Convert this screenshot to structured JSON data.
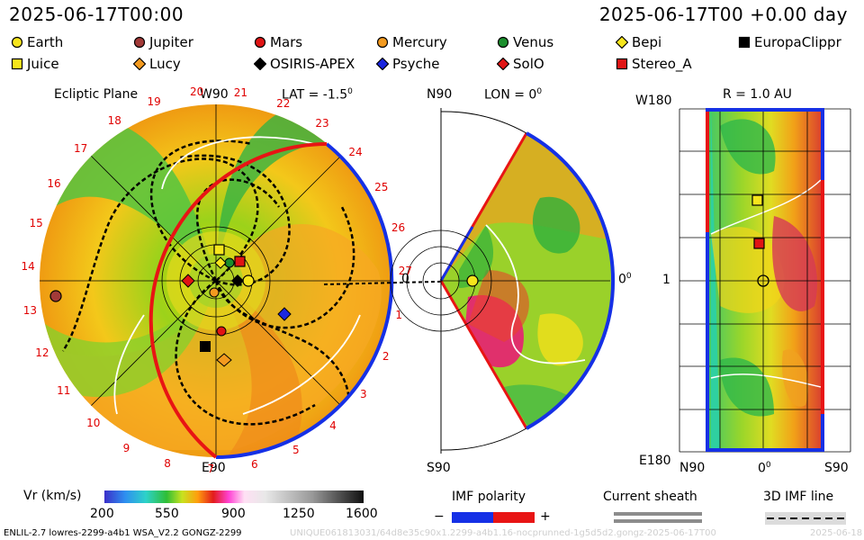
{
  "header": {
    "datetime": "2025-06-17T00:00",
    "offset": "2025-06-17T00 +0.00 day"
  },
  "legend": [
    {
      "name": "Earth",
      "shape": "circle",
      "color": "#f6e51c"
    },
    {
      "name": "Jupiter",
      "shape": "circle",
      "color": "#a23a38"
    },
    {
      "name": "Mars",
      "shape": "circle",
      "color": "#e01414"
    },
    {
      "name": "Mercury",
      "shape": "circle",
      "color": "#f39a1f"
    },
    {
      "name": "Venus",
      "shape": "circle",
      "color": "#1a8e2c"
    },
    {
      "name": "Bepi",
      "shape": "diamond",
      "color": "#f6e51c"
    },
    {
      "name": "EuropaClippr",
      "shape": "square",
      "color": "#000000"
    },
    {
      "name": "Juice",
      "shape": "square",
      "color": "#f6e51c"
    },
    {
      "name": "Lucy",
      "shape": "diamond",
      "color": "#f39a1f"
    },
    {
      "name": "OSIRIS-APEX",
      "shape": "diamond",
      "color": "#000000"
    },
    {
      "name": "Psyche",
      "shape": "diamond",
      "color": "#1b27e0"
    },
    {
      "name": "SolO",
      "shape": "diamond",
      "color": "#e01414"
    },
    {
      "name": "Stereo_A",
      "shape": "square",
      "color": "#e01414"
    }
  ],
  "ecliptic": {
    "title": "Ecliptic Plane",
    "top_label": "W90",
    "lat_label": "LAT = -1.5",
    "lat_sup": "0",
    "bottom_label": "E90",
    "ticks": [
      "20",
      "21",
      "22",
      "23",
      "24",
      "25",
      "26",
      "27",
      "1",
      "2",
      "3",
      "4",
      "5",
      "6",
      "7",
      "8",
      "9",
      "10",
      "11",
      "12",
      "13",
      "14",
      "15",
      "16",
      "17",
      "18",
      "19"
    ],
    "right_label": "0"
  },
  "meridional": {
    "top_label": "N90",
    "lon_label": "LON = 0",
    "lon_sup": "0",
    "bottom_label": "S90",
    "right_label": "0",
    "right_sup": "0"
  },
  "map": {
    "title": "R = 1.0 AU",
    "top_left": "W180",
    "mid_left": "1",
    "bottom_left": "E180",
    "bottom_labels": [
      "N90",
      "0",
      "S90"
    ],
    "zero_sup": "0"
  },
  "colorbar": {
    "label": "Vr (km/s)",
    "ticks": [
      "200",
      "550",
      "900",
      "1250",
      "1600"
    ]
  },
  "imf": {
    "title": "IMF polarity",
    "minus": "−",
    "plus": "+",
    "neg_color": "#1530e6",
    "pos_color": "#e81414"
  },
  "sheath": {
    "title": "Current sheath"
  },
  "imfline": {
    "title": "3D IMF line"
  },
  "footer": {
    "model": "ENLIL-2.7 lowres-2299-a4b1 WSA_V2.2 GONGZ-2299",
    "run": "UNIQUE061813031/64d8e35c90x1.2299-a4b1.16-nocprunned-1g5d5d2.gongz-2025-06-17T00",
    "date": "2025-06-18"
  }
}
